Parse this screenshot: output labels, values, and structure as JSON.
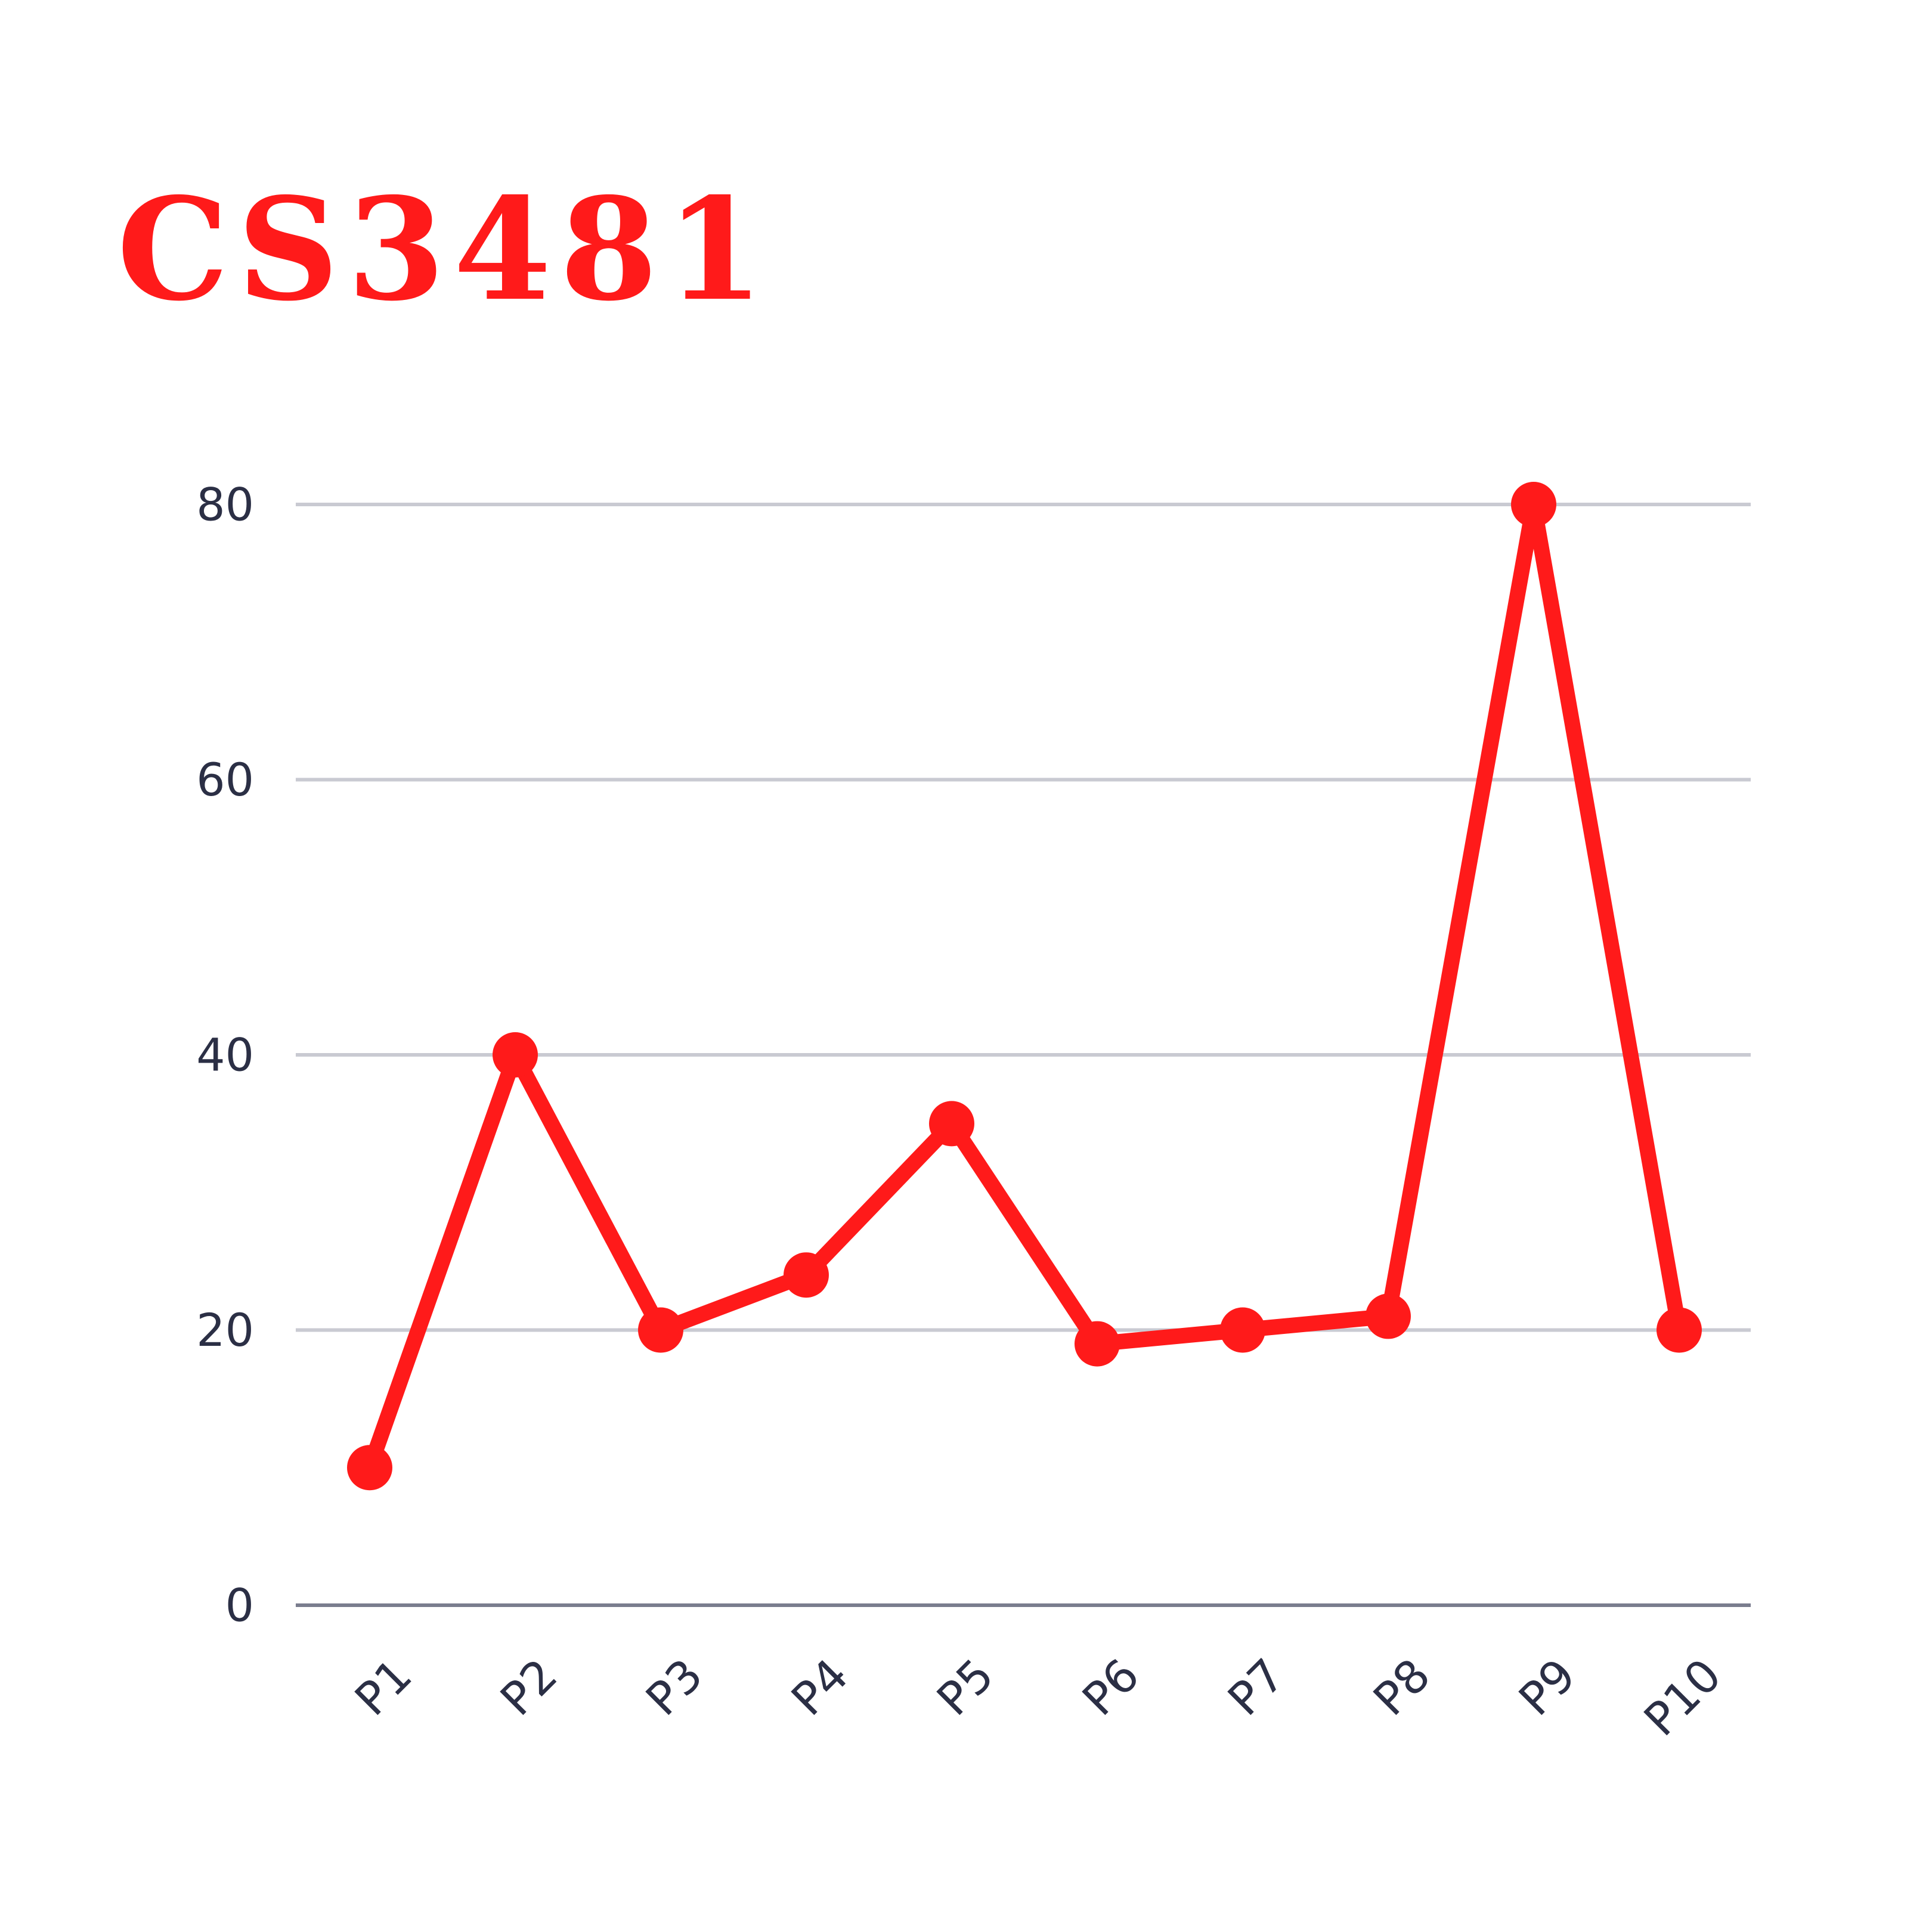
{
  "chart_data": {
    "type": "line",
    "title": "CS3481",
    "xlabel": "",
    "ylabel": "",
    "categories": [
      "P1",
      "P2",
      "P3",
      "P4",
      "P5",
      "P6",
      "P7",
      "P8",
      "P9",
      "P10"
    ],
    "series": [
      {
        "values": [
          10,
          40,
          20,
          24,
          35,
          19,
          20,
          21,
          80,
          20
        ]
      }
    ],
    "ylim": [
      0,
      80
    ],
    "yticks": [
      0,
      20,
      40,
      60,
      80
    ],
    "grid": true,
    "legend": "none",
    "colors": {
      "series": "#ff1a1a",
      "title": "#ff1a1a",
      "grid": "#c9cad2",
      "axis": "#7a7d8e",
      "tick_text": "#2b2f45"
    }
  }
}
